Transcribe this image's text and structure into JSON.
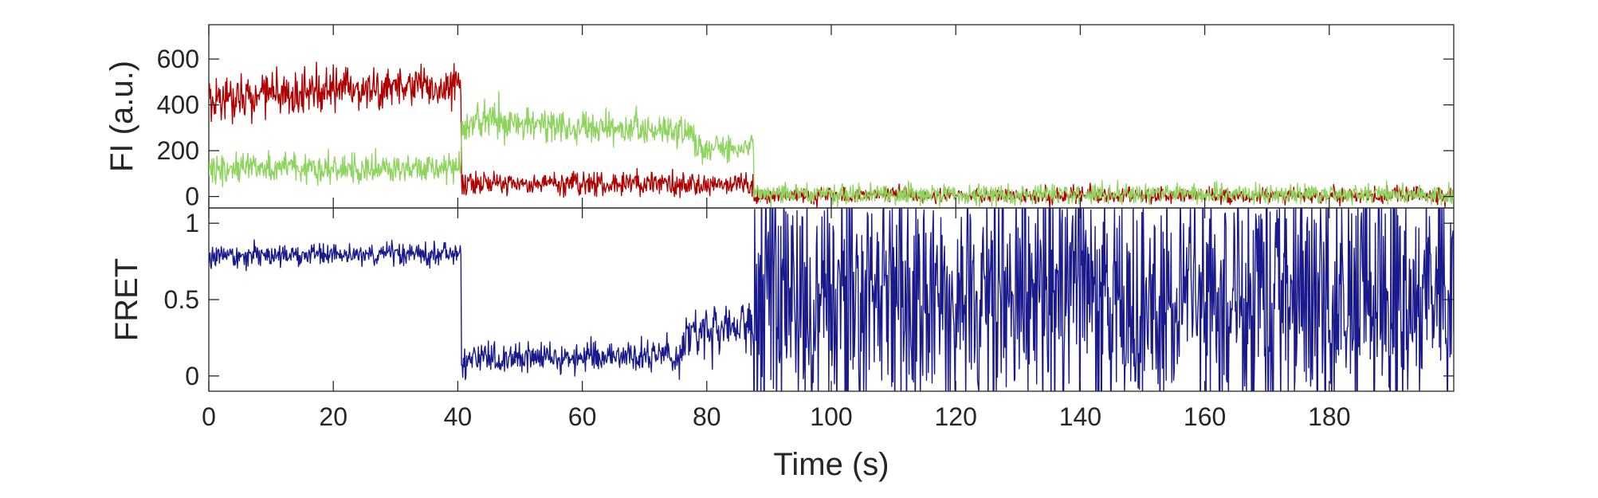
{
  "chart_data": [
    {
      "type": "line",
      "panel": "top",
      "ylabel": "FI (a.u.)",
      "xlim": [
        0,
        200
      ],
      "ylim": [
        -50,
        750
      ],
      "yticks": [
        0,
        200,
        400,
        600
      ],
      "ytick_labels": [
        "0",
        "200",
        "400",
        "600"
      ],
      "series": [
        {
          "color": "#b00000",
          "segments": [
            {
              "t0": 0,
              "t1": 40.6,
              "level": 430,
              "rise": 60,
              "noise": 85
            },
            {
              "t0": 40.6,
              "t1": 87.5,
              "level": 55,
              "rise": 0,
              "noise": 45
            },
            {
              "t0": 87.5,
              "t1": 200,
              "level": 5,
              "rise": 0,
              "noise": 30
            }
          ]
        },
        {
          "color": "#8fd45e",
          "segments": [
            {
              "t0": 0,
              "t1": 40.6,
              "level": 125,
              "rise": 0,
              "noise": 60
            },
            {
              "t0": 40.6,
              "t1": 78,
              "level": 330,
              "rise": -50,
              "noise": 70
            },
            {
              "t0": 78,
              "t1": 87.5,
              "level": 210,
              "rise": 0,
              "noise": 55
            },
            {
              "t0": 87.5,
              "t1": 200,
              "level": 10,
              "rise": 0,
              "noise": 40
            }
          ]
        }
      ]
    },
    {
      "type": "line",
      "panel": "bottom",
      "xlabel": "Time (s)",
      "ylabel": "FRET",
      "xlim": [
        0,
        200
      ],
      "ylim": [
        -0.1,
        1.1
      ],
      "xticks": [
        0,
        20,
        40,
        60,
        80,
        100,
        120,
        140,
        160,
        180
      ],
      "xtick_labels": [
        "0",
        "20",
        "40",
        "60",
        "80",
        "100",
        "120",
        "140",
        "160",
        "180"
      ],
      "yticks": [
        0,
        0.5,
        1
      ],
      "ytick_labels": [
        "0",
        "0.5",
        "1"
      ],
      "series": [
        {
          "color": "#1a1a8c",
          "segments": [
            {
              "t0": 0,
              "t1": 40.6,
              "level": 0.78,
              "rise": 0.03,
              "noise": 0.065
            },
            {
              "t0": 40.6,
              "t1": 76,
              "level": 0.1,
              "rise": 0.03,
              "noise": 0.09
            },
            {
              "t0": 76,
              "t1": 87.5,
              "level": 0.25,
              "rise": 0.1,
              "noise": 0.17
            },
            {
              "t0": 87.5,
              "t1": 200,
              "level": 0.5,
              "rise": 0,
              "noise": 0.75
            }
          ]
        }
      ]
    }
  ]
}
